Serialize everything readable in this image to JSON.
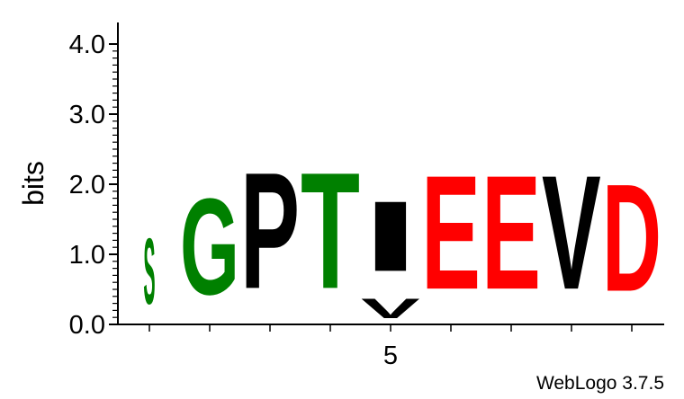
{
  "chart_data": {
    "type": "sequence-logo",
    "ylabel": "bits",
    "ylim": [
      0,
      4.0
    ],
    "y_ticks": [
      "0.0",
      "1.0",
      "2.0",
      "3.0",
      "4.0"
    ],
    "x_tick_labels": [
      {
        "position": 5,
        "label": "5"
      }
    ],
    "credit": "WebLogo 3.7.5",
    "colors": {
      "green": "#008000",
      "black": "#000000",
      "red": "#ff0000"
    },
    "columns": [
      {
        "position": 1,
        "stack": [
          {
            "letter": "S",
            "bits": 1.5,
            "color": "#008000"
          }
        ]
      },
      {
        "position": 2,
        "stack": [
          {
            "letter": "G",
            "bits": 2.2,
            "color": "#008000"
          }
        ]
      },
      {
        "position": 3,
        "stack": [
          {
            "letter": "P",
            "bits": 2.65,
            "color": "#000000"
          }
        ]
      },
      {
        "position": 4,
        "stack": [
          {
            "letter": "T",
            "bits": 2.65,
            "color": "#008000"
          }
        ]
      },
      {
        "position": 5,
        "stack": [
          {
            "letter": "V",
            "bits": 0.45,
            "color": "#000000"
          },
          {
            "letter": "I",
            "bits": 1.6,
            "color": "#000000"
          }
        ]
      },
      {
        "position": 6,
        "stack": [
          {
            "letter": "E",
            "bits": 2.6,
            "color": "#ff0000"
          }
        ]
      },
      {
        "position": 7,
        "stack": [
          {
            "letter": "E",
            "bits": 2.6,
            "color": "#ff0000"
          }
        ]
      },
      {
        "position": 8,
        "stack": [
          {
            "letter": "V",
            "bits": 2.6,
            "color": "#000000"
          }
        ]
      },
      {
        "position": 9,
        "stack": [
          {
            "letter": "D",
            "bits": 2.45,
            "color": "#ff0000"
          }
        ]
      }
    ]
  }
}
